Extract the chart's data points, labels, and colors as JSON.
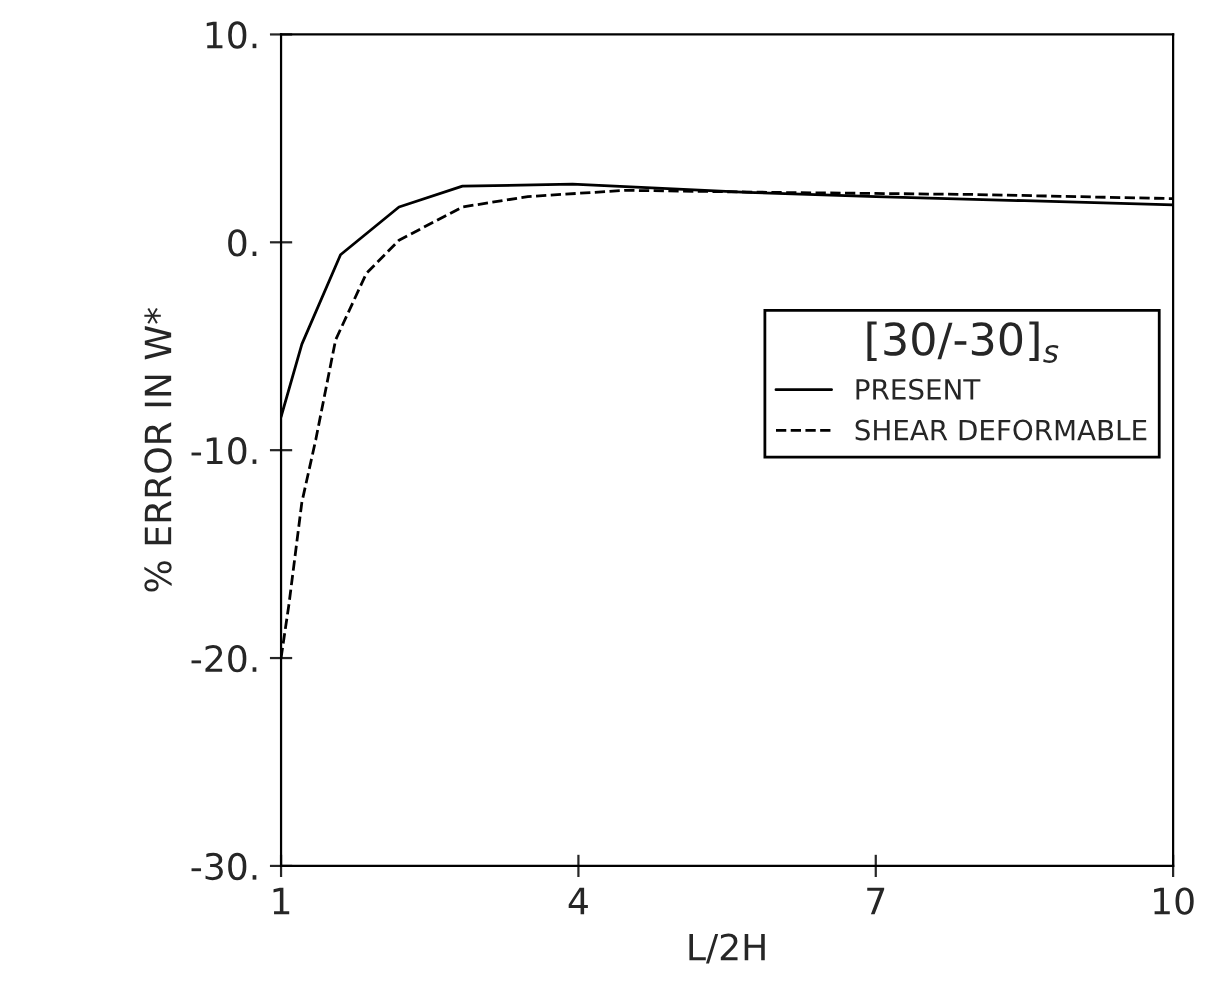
{
  "chart_data": {
    "type": "line",
    "xlabel": "L/2H",
    "ylabel": "% ERROR IN W*",
    "legend_title": "[30/-30]$_{s}$",
    "legend": "right",
    "xlim": [
      1,
      10
    ],
    "xticks": [
      1,
      4,
      7,
      10
    ],
    "ylim": [
      -30,
      10
    ],
    "yticks": [
      {
        "value": -30,
        "label": "-30."
      },
      {
        "value": -20,
        "label": "-20."
      },
      {
        "value": -10,
        "label": "-10."
      },
      {
        "value": 0,
        "label": "0."
      },
      {
        "value": 10,
        "label": "10."
      }
    ],
    "grid": false,
    "series": [
      {
        "name": "PRESENT",
        "color": "#000000",
        "line_style": "solid",
        "x": [
          1,
          1.21,
          1.6,
          2.19,
          2.83,
          3.94,
          5.7,
          7,
          8.5,
          10
        ],
        "values": [
          -8.4,
          -4.9,
          -0.6,
          1.7,
          2.7,
          2.8,
          2.4,
          2.2,
          2.0,
          1.8
        ]
      },
      {
        "name": "SHEAR DEFORMABLE",
        "color": "#000000",
        "line_style": "dashed",
        "x": [
          1,
          1.08,
          1.21,
          1.35,
          1.55,
          1.86,
          2.19,
          2.83,
          3.49,
          4.47,
          6,
          8,
          10
        ],
        "values": [
          -20,
          -17.4,
          -12.5,
          -9.5,
          -4.7,
          -1.5,
          0.1,
          1.7,
          2.2,
          2.5,
          2.4,
          2.3,
          2.1
        ]
      }
    ]
  }
}
